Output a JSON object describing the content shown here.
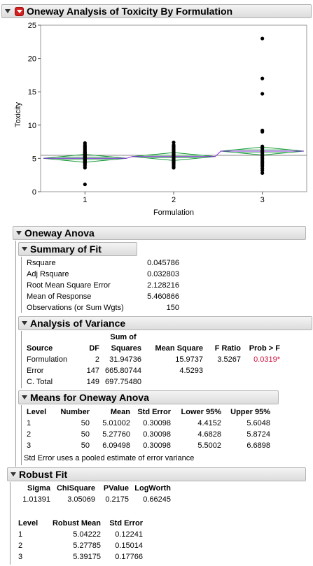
{
  "report": {
    "title": "Oneway Analysis of Toxicity By Formulation"
  },
  "chart_data": {
    "type": "scatter",
    "title": "",
    "xlabel": "Formulation",
    "ylabel": "Toxicity",
    "categories": [
      "1",
      "2",
      "3"
    ],
    "ylim": [
      0,
      25
    ],
    "yticks": [
      0,
      5,
      10,
      15,
      20,
      25
    ],
    "grand_mean": 5.460866,
    "points": {
      "1": [
        7.3,
        7.0,
        6.8,
        6.6,
        6.4,
        6.2,
        6.0,
        5.9,
        5.8,
        5.7,
        5.6,
        5.5,
        5.4,
        5.3,
        5.2,
        5.1,
        5.0,
        4.9,
        4.8,
        4.7,
        4.6,
        4.5,
        4.4,
        4.3,
        4.1,
        3.9,
        3.6,
        1.1
      ],
      "2": [
        7.4,
        7.0,
        6.8,
        6.6,
        6.4,
        6.2,
        6.0,
        5.9,
        5.8,
        5.7,
        5.6,
        5.5,
        5.4,
        5.3,
        5.2,
        5.1,
        5.0,
        4.9,
        4.8,
        4.7,
        4.6,
        4.5,
        4.4,
        4.3,
        4.2,
        4.0,
        3.8,
        3.6
      ],
      "3": [
        23.0,
        17.0,
        14.7,
        9.2,
        9.0,
        6.8,
        6.5,
        6.2,
        6.0,
        5.8,
        5.6,
        5.4,
        5.2,
        5.0,
        4.8,
        4.6,
        4.4,
        4.2,
        4.0,
        3.8,
        3.5,
        3.2,
        2.8
      ]
    },
    "diamonds": [
      {
        "level": "1",
        "mean": 5.01002,
        "lower": 4.4152,
        "upper": 5.6048
      },
      {
        "level": "2",
        "mean": 5.2776,
        "lower": 4.6828,
        "upper": 5.8724
      },
      {
        "level": "3",
        "mean": 6.09498,
        "lower": 5.5002,
        "upper": 6.6898
      }
    ],
    "colors": {
      "diamond": "#1a9a3a",
      "mean_line": "#8a2be2",
      "grand_mean": "#8a8a8a",
      "points": "#000000"
    }
  },
  "oneway_anova": {
    "title": "Oneway Anova",
    "summary_of_fit": {
      "title": "Summary of Fit",
      "rows": [
        {
          "label": "Rsquare",
          "value": "0.045786"
        },
        {
          "label": "Adj Rsquare",
          "value": "0.032803"
        },
        {
          "label": "Root Mean Square Error",
          "value": "2.128216"
        },
        {
          "label": "Mean of Response",
          "value": "5.460866"
        },
        {
          "label": "Observations (or Sum Wgts)",
          "value": "150"
        }
      ]
    },
    "analysis_of_variance": {
      "title": "Analysis of Variance",
      "headers": {
        "source": "Source",
        "df": "DF",
        "ss_top": "Sum of",
        "ss": "Squares",
        "ms": "Mean Square",
        "f": "F Ratio",
        "p": "Prob > F"
      },
      "rows": [
        {
          "source": "Formulation",
          "df": "2",
          "ss": "31.94736",
          "ms": "15.9737",
          "f": "3.5267",
          "p": "0.0319*"
        },
        {
          "source": "Error",
          "df": "147",
          "ss": "665.80744",
          "ms": "4.5293",
          "f": "",
          "p": ""
        },
        {
          "source": "C. Total",
          "df": "149",
          "ss": "697.75480",
          "ms": "",
          "f": "",
          "p": ""
        }
      ]
    },
    "means": {
      "title": "Means for Oneway Anova",
      "headers": [
        "Level",
        "Number",
        "Mean",
        "Std Error",
        "Lower 95%",
        "Upper 95%"
      ],
      "rows": [
        [
          "1",
          "50",
          "5.01002",
          "0.30098",
          "4.4152",
          "5.6048"
        ],
        [
          "2",
          "50",
          "5.27760",
          "0.30098",
          "4.6828",
          "5.8724"
        ],
        [
          "3",
          "50",
          "6.09498",
          "0.30098",
          "5.5002",
          "6.6898"
        ]
      ],
      "note": "Std Error uses a pooled estimate of error variance"
    }
  },
  "robust_fit": {
    "title": "Robust Fit",
    "stats_headers": [
      "Sigma",
      "ChiSquare",
      "PValue",
      "LogWorth"
    ],
    "stats_values": [
      "1.01391",
      "3.05069",
      "0.2175",
      "0.66245"
    ],
    "level_headers": [
      "Level",
      "Robust Mean",
      "Std Error"
    ],
    "level_rows": [
      [
        "1",
        "5.04222",
        "0.12241"
      ],
      [
        "2",
        "5.27785",
        "0.15014"
      ],
      [
        "3",
        "5.39175",
        "0.17766"
      ]
    ]
  }
}
